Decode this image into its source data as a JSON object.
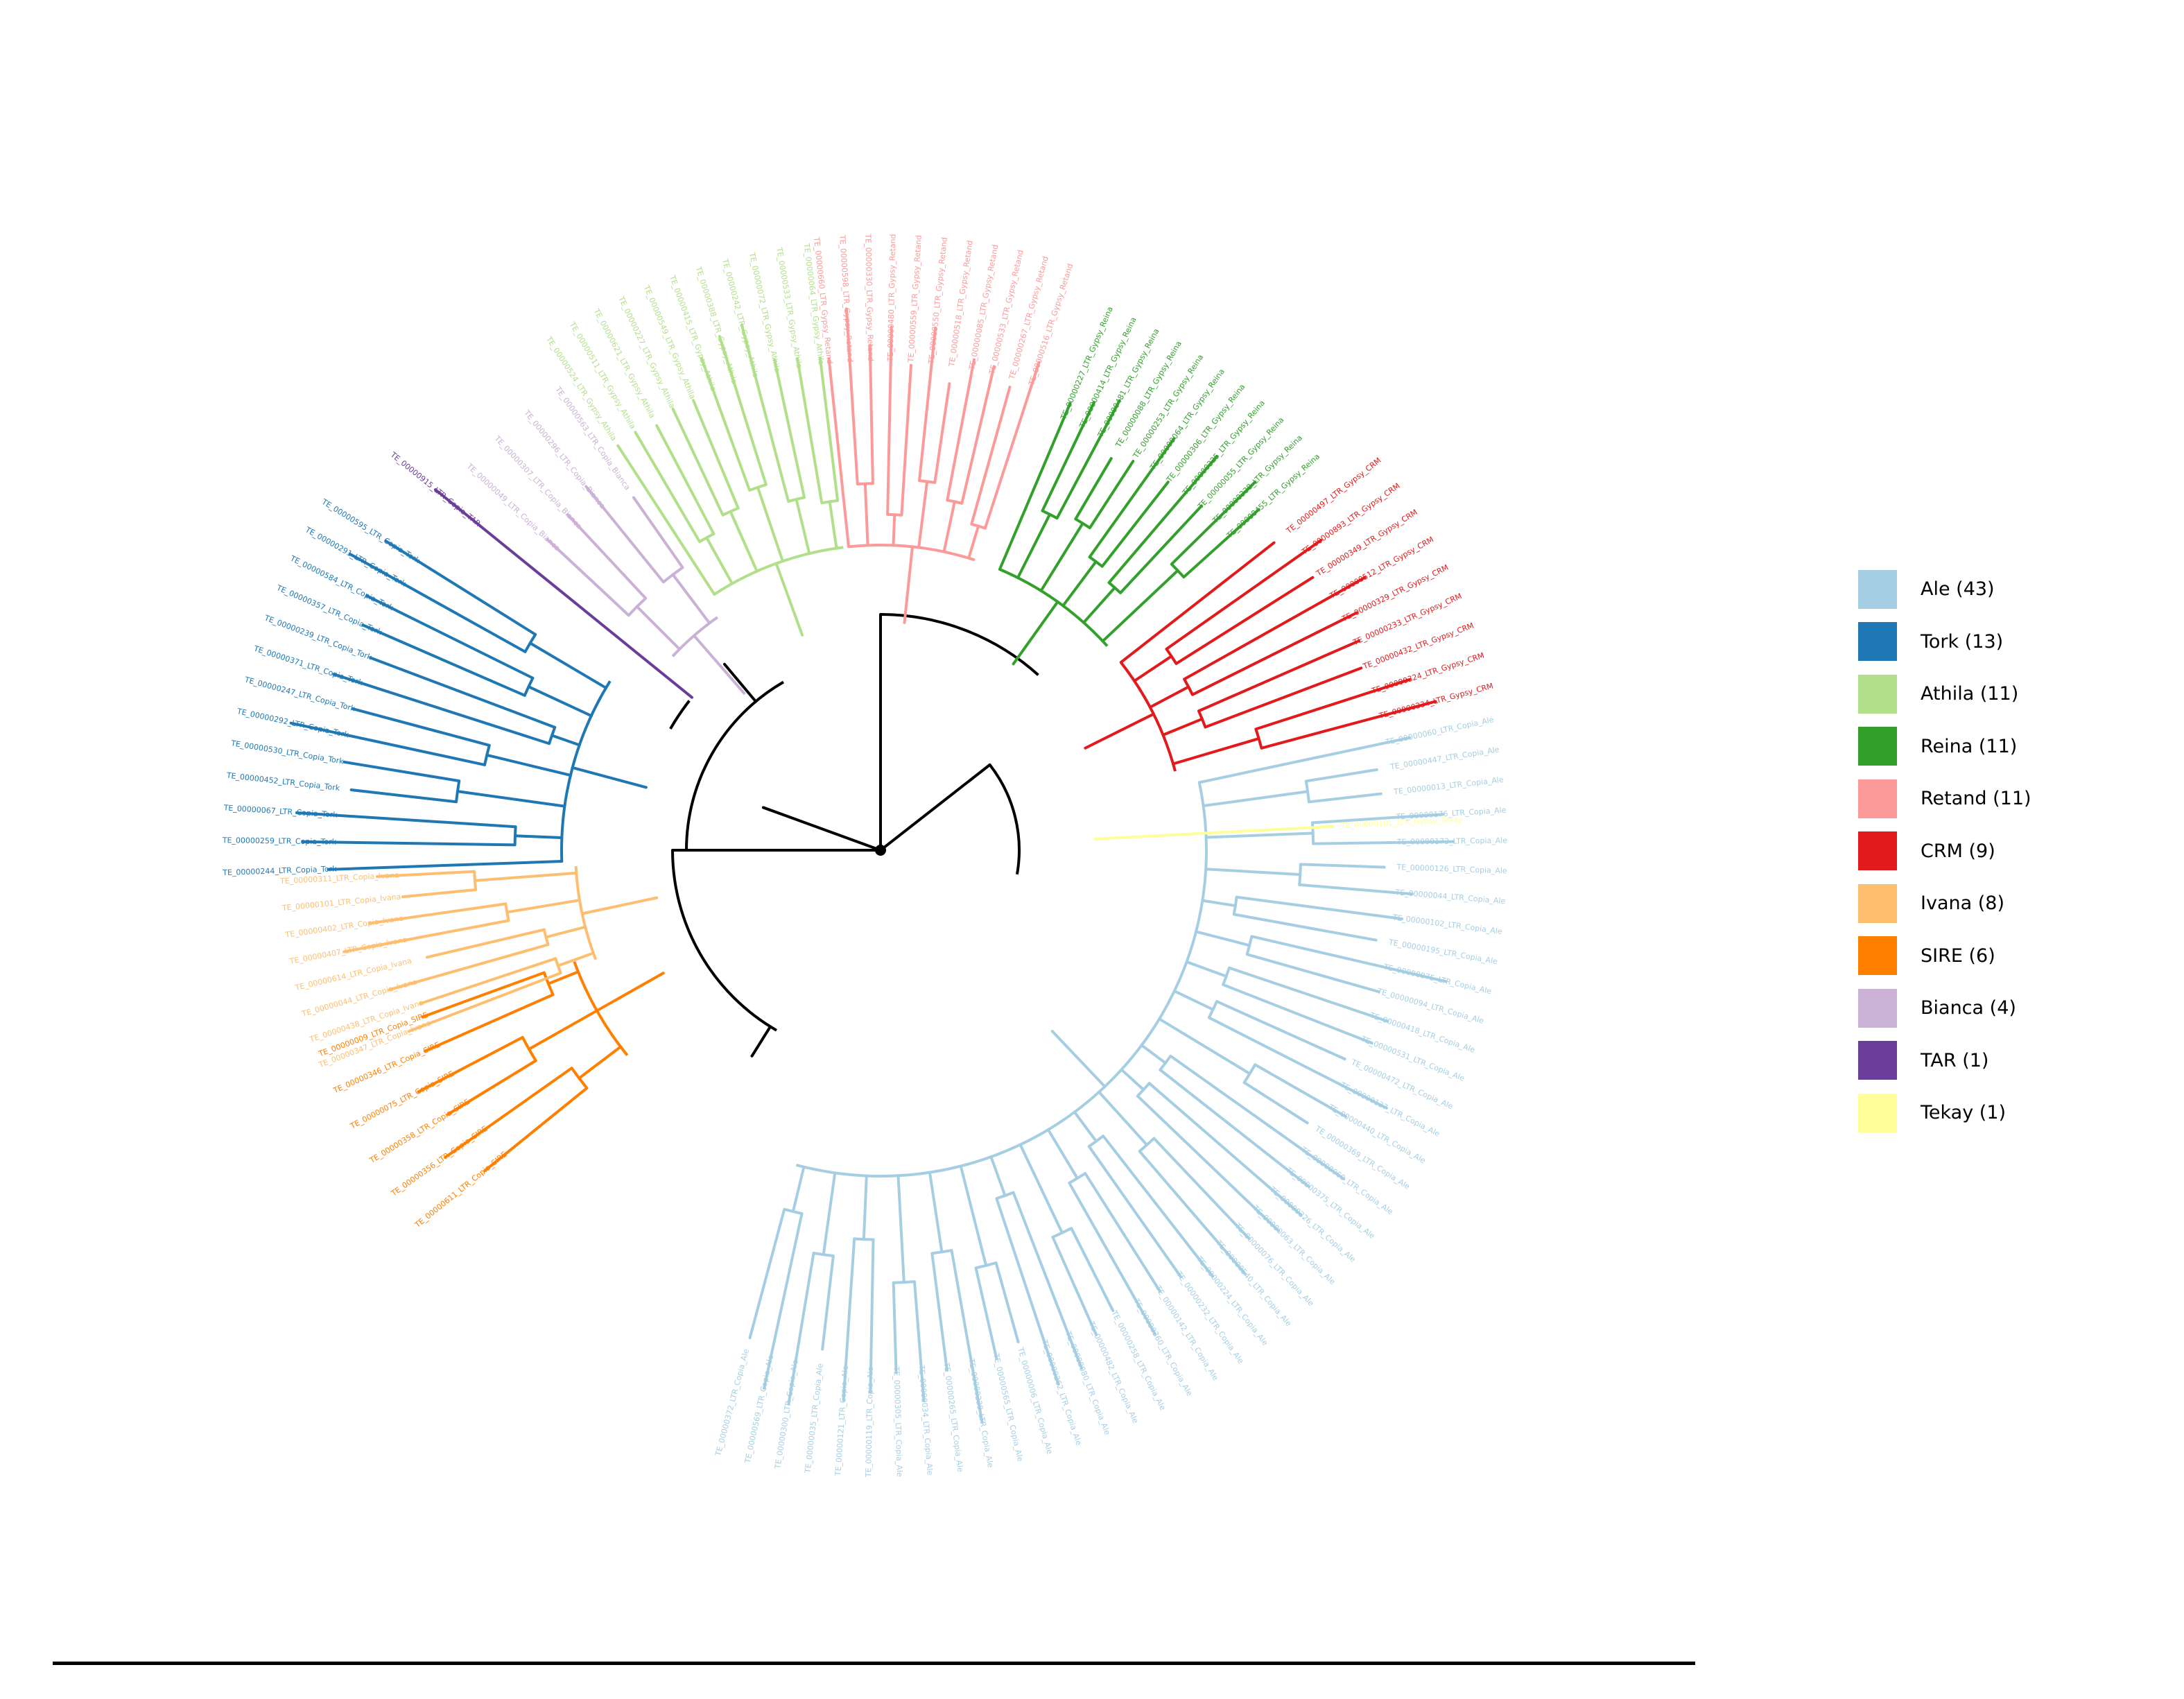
{
  "colors": {
    "backbone": "#000000",
    "Ale": "#a6cee3",
    "Tork": "#1f78b4",
    "Athila": "#b2df8a",
    "Reina": "#33a02c",
    "Retand": "#fb9a99",
    "CRM": "#e31a1c",
    "Ivana": "#fdbf6f",
    "SIRE": "#ff7f00",
    "Bianca": "#cab2d6",
    "TAR": "#6a3d9a",
    "Tekay": "#ffff99"
  },
  "legend": [
    {
      "key": "Ale",
      "label": "Ale (43)"
    },
    {
      "key": "Tork",
      "label": "Tork (13)"
    },
    {
      "key": "Athila",
      "label": "Athila (11)"
    },
    {
      "key": "Reina",
      "label": "Reina (11)"
    },
    {
      "key": "Retand",
      "label": "Retand (11)"
    },
    {
      "key": "CRM",
      "label": "CRM (9)"
    },
    {
      "key": "Ivana",
      "label": "Ivana (8)"
    },
    {
      "key": "SIRE",
      "label": "SIRE (6)"
    },
    {
      "key": "Bianca",
      "label": "Bianca (4)"
    },
    {
      "key": "TAR",
      "label": "TAR (1)"
    },
    {
      "key": "Tekay",
      "label": "Tekay (1)"
    }
  ],
  "tree": {
    "clades": [
      {
        "key": "Ale",
        "tips": [
          "TE_00000372_LTR_Copia_Ale",
          "TE_00000569_LTR_Copia_Ale",
          "TE_00000300_LTR_Copia_Ale",
          "TE_00000035_LTR_Copia_Ale",
          "TE_00000121_LTR_Copia_Ale",
          "TE_00000119_LTR_Copia_Ale",
          "TE_00000305_LTR_Copia_Ale",
          "TE_00000034_LTR_Copia_Ale",
          "TE_00000265_LTR_Copia_Ale",
          "TE_00000239_LTR_Copia_Ale",
          "TE_00000565_LTR_Copia_Ale",
          "TE_00000006_LTR_Copia_Ale",
          "TE_00000262_LTR_Copia_Ale",
          "TE_00000080_LTR_Copia_Ale",
          "TE_00000482_LTR_Copia_Ale",
          "TE_00000258_LTR_Copia_Ale",
          "TE_00000360_LTR_Copia_Ale",
          "TE_00000142_LTR_Copia_Ale",
          "TE_00000232_LTR_Copia_Ale",
          "TE_00000224_LTR_Copia_Ale",
          "TE_00000540_LTR_Copia_Ale",
          "TE_00000076_LTR_Copia_Ale",
          "TE_00000063_LTR_Copia_Ale",
          "TE_00000326_LTR_Copia_Ale",
          "TE_00000375_LTR_Copia_Ale",
          "TE_00000060_LTR_Copia_Ale",
          "TE_00000369_LTR_Copia_Ale",
          "TE_00000440_LTR_Copia_Ale",
          "TE_00000137_LTR_Copia_Ale",
          "TE_00000472_LTR_Copia_Ale",
          "TE_00000531_LTR_Copia_Ale",
          "TE_00000418_LTR_Copia_Ale",
          "TE_00000094_LTR_Copia_Ale",
          "TE_00000075_LTR_Copia_Ale",
          "TE_00000195_LTR_Copia_Ale",
          "TE_00000102_LTR_Copia_Ale",
          "TE_00000044_LTR_Copia_Ale",
          "TE_00000126_LTR_Copia_Ale",
          "TE_00000173_LTR_Copia_Ale",
          "TE_00000176_LTR_Copia_Ale",
          "TE_00000013_LTR_Copia_Ale",
          "TE_00000447_LTR_Copia_Ale",
          "TE_00000060_LTR_Copia_Ale"
        ]
      },
      {
        "key": "SIRE",
        "tips": [
          "TE_00000009_LTR_Copia_SIRE",
          "TE_00000346_LTR_Copia_SIRE",
          "TE_00000075_LTR_Copia_SIRE",
          "TE_00000358_LTR_Copia_SIRE",
          "TE_00000356_LTR_Copia_SIRE",
          "TE_00000611_LTR_Copia_SIRE"
        ]
      },
      {
        "key": "Ivana",
        "tips": [
          "TE_00000311_LTR_Copia_Ivana",
          "TE_00000101_LTR_Copia_Ivana",
          "TE_00000402_LTR_Copia_Ivana",
          "TE_00000407_LTR_Copia_Ivana",
          "TE_00000614_LTR_Copia_Ivana",
          "TE_00000044_LTR_Copia_Ivana",
          "TE_00000438_LTR_Copia_Ivana",
          "TE_00000347_LTR_Copia_Ivana"
        ]
      },
      {
        "key": "Tork",
        "tips": [
          "TE_00000595_LTR_Copia_Tork",
          "TE_00000291_LTR_Copia_Tork",
          "TE_00000584_LTR_Copia_Tork",
          "TE_00000357_LTR_Copia_Tork",
          "TE_00000239_LTR_Copia_Tork",
          "TE_00000371_LTR_Copia_Tork",
          "TE_00000247_LTR_Copia_Tork",
          "TE_00000292_LTR_Copia_Tork",
          "TE_00000530_LTR_Copia_Tork",
          "TE_00000452_LTR_Copia_Tork",
          "TE_00000067_LTR_Copia_Tork",
          "TE_00000259_LTR_Copia_Tork",
          "TE_00000244_LTR_Copia_Tork"
        ]
      },
      {
        "key": "TAR",
        "tips": [
          "TE_00000915_LTR_Copia_TAR"
        ]
      },
      {
        "key": "Bianca",
        "tips": [
          "TE_00000563_LTR_Copia_Bianca",
          "TE_00000296_LTR_Copia_Bianca",
          "TE_00000307_LTR_Copia_Bianca",
          "TE_00000049_LTR_Copia_Bianca"
        ]
      },
      {
        "key": "Athila",
        "tips": [
          "TE_00000064_LTR_Gypsy_Athila",
          "TE_00000533_LTR_Gypsy_Athila",
          "TE_00000072_LTR_Gypsy_Athila",
          "TE_00000242_LTR_Gypsy_Athila",
          "TE_00000388_LTR_Gypsy_Athila",
          "TE_00000415_LTR_Gypsy_Athila",
          "TE_00000549_LTR_Gypsy_Athila",
          "TE_00000227_LTR_Gypsy_Athila",
          "TE_00000621_LTR_Gypsy_Athila",
          "TE_00000511_LTR_Gypsy_Athila",
          "TE_00000524_LTR_Gypsy_Athila"
        ]
      },
      {
        "key": "Retand",
        "tips": [
          "TE_00000516_LTR_Gypsy_Retand",
          "TE_00000267_LTR_Gypsy_Retand",
          "TE_00000533_LTR_Gypsy_Retand",
          "TE_00000085_LTR_Gypsy_Retand",
          "TE_00000518_LTR_Gypsy_Retand",
          "TE_00000550_LTR_Gypsy_Retand",
          "TE_00000559_LTR_Gypsy_Retand",
          "TE_00000480_LTR_Gypsy_Retand",
          "TE_00000330_LTR_Gypsy_Retand",
          "TE_00000598_LTR_Gypsy_Retand",
          "TE_00000660_LTR_Gypsy_Retand"
        ]
      },
      {
        "key": "Reina",
        "tips": [
          "TE_00000455_LTR_Gypsy_Reina",
          "TE_00000338_LTR_Gypsy_Reina",
          "TE_00000055_LTR_Gypsy_Reina",
          "TE_00000325_LTR_Gypsy_Reina",
          "TE_00000306_LTR_Gypsy_Reina",
          "TE_00000064_LTR_Gypsy_Reina",
          "TE_00000253_LTR_Gypsy_Reina",
          "TE_00000088_LTR_Gypsy_Reina",
          "TE_00000481_LTR_Gypsy_Reina",
          "TE_00000414_LTR_Gypsy_Reina",
          "TE_00000227_LTR_Gypsy_Reina"
        ]
      },
      {
        "key": "CRM",
        "tips": [
          "TE_00000334_LTR_Gypsy_CRM",
          "TE_00000324_LTR_Gypsy_CRM",
          "TE_00000432_LTR_Gypsy_CRM",
          "TE_00000233_LTR_Gypsy_CRM",
          "TE_00000329_LTR_Gypsy_CRM",
          "TE_00000512_LTR_Gypsy_CRM",
          "TE_00000349_LTR_Gypsy_CRM",
          "TE_00000893_LTR_Gypsy_CRM",
          "TE_00000497_LTR_Gypsy_CRM"
        ]
      },
      {
        "key": "Tekay",
        "tips": [
          "TE_00000101_LTR_Gypsy_Tekay"
        ]
      }
    ]
  }
}
